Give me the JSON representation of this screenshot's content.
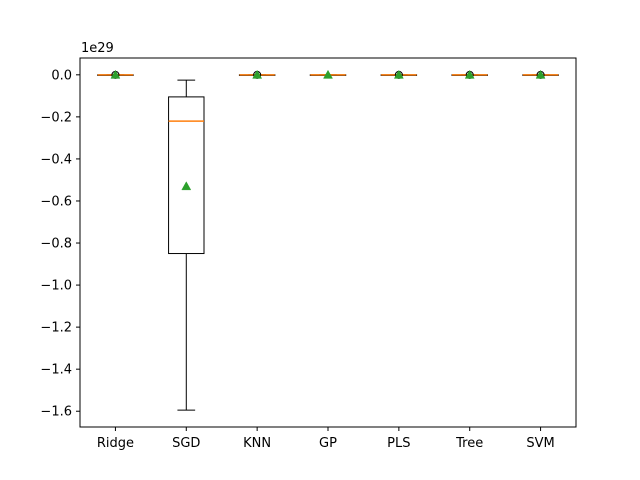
{
  "chart_data": {
    "type": "box",
    "exponent_label": "1e29",
    "ylim": [
      -1.675,
      0.08
    ],
    "yticks": [
      {
        "value": 0.0,
        "label": "0.0"
      },
      {
        "value": -0.2,
        "label": "−0.2"
      },
      {
        "value": -0.4,
        "label": "−0.4"
      },
      {
        "value": -0.6,
        "label": "−0.6"
      },
      {
        "value": -0.8,
        "label": "−0.8"
      },
      {
        "value": -1.0,
        "label": "−1.0"
      },
      {
        "value": -1.2,
        "label": "−1.2"
      },
      {
        "value": -1.4,
        "label": "−1.4"
      },
      {
        "value": -1.6,
        "label": "−1.6"
      }
    ],
    "grid": false,
    "categories": [
      "Ridge",
      "SGD",
      "KNN",
      "GP",
      "PLS",
      "Tree",
      "SVM"
    ],
    "boxes": [
      {
        "whisker_low": 0.0,
        "q1": 0.0,
        "median": 0.0,
        "q3": 0.0,
        "whisker_high": 0.0,
        "mean": 0.0,
        "fliers": [
          0.0
        ]
      },
      {
        "whisker_low": -1.595,
        "q1": -0.85,
        "median": -0.22,
        "q3": -0.105,
        "whisker_high": -0.025,
        "mean": -0.53,
        "fliers": []
      },
      {
        "whisker_low": 0.0,
        "q1": 0.0,
        "median": 0.0,
        "q3": 0.0,
        "whisker_high": 0.0,
        "mean": 0.0,
        "fliers": [
          0.0
        ]
      },
      {
        "whisker_low": 0.0,
        "q1": 0.0,
        "median": 0.0,
        "q3": 0.0,
        "whisker_high": 0.0,
        "mean": 0.0,
        "fliers": []
      },
      {
        "whisker_low": 0.0,
        "q1": 0.0,
        "median": 0.0,
        "q3": 0.0,
        "whisker_high": 0.0,
        "mean": 0.0,
        "fliers": [
          0.0
        ]
      },
      {
        "whisker_low": 0.0,
        "q1": 0.0,
        "median": 0.0,
        "q3": 0.0,
        "whisker_high": 0.0,
        "mean": 0.0,
        "fliers": [
          0.0
        ]
      },
      {
        "whisker_low": 0.0,
        "q1": 0.0,
        "median": 0.0,
        "q3": 0.0,
        "whisker_high": 0.0,
        "mean": 0.0,
        "fliers": [
          0.0
        ]
      }
    ],
    "colors": {
      "box": "#000000",
      "median": "#ff7f0e",
      "mean": "#2ca02c",
      "flier": "#000000"
    }
  }
}
